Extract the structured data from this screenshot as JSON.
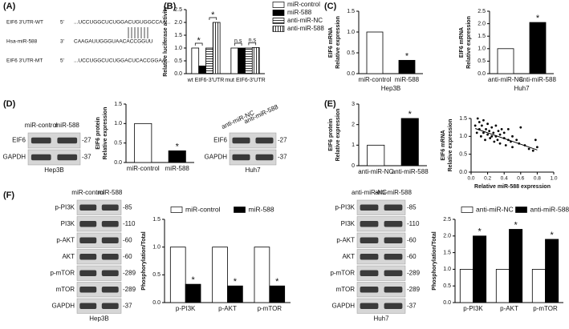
{
  "panel_labels": [
    "(A)",
    "(B)",
    "(C)",
    "(D)",
    "(E)",
    "(F)"
  ],
  "sequences": [
    {
      "name": "EIF6 3'UTR-WT",
      "end": "5'",
      "seq": "...UCCUGGCUCUGGACUGUGGCCAA..."
    },
    {
      "name": "Hsa-miR-588",
      "end": "3'",
      "seq": "CAAGAUUGGGUAACACCGGUU"
    },
    {
      "name": "EIF6 3'UTR-MT",
      "end": "5'",
      "seq": "...UCCUGGCUCUGGACUCACCGGAA..."
    }
  ],
  "blots": [
    {
      "lanes": [
        "miR-control",
        "miR-588"
      ],
      "rows": [
        {
          "name": "EIF6",
          "kda": "-27"
        },
        {
          "name": "GAPDH",
          "kda": "-37"
        }
      ],
      "cell": "Hep3B"
    },
    {
      "lanes": [
        "anti-miR-NC",
        "anti-miR-588"
      ],
      "rows": [
        {
          "name": "EIF6",
          "kda": "-27"
        },
        {
          "name": "GAPDH",
          "kda": "-37"
        }
      ],
      "cell": "Huh7"
    },
    {
      "lanes": [
        "miR-control",
        "miR-588"
      ],
      "rows": [
        {
          "name": "p-PI3K",
          "kda": "-85"
        },
        {
          "name": "PI3K",
          "kda": "-110"
        },
        {
          "name": "p-AKT",
          "kda": "-60"
        },
        {
          "name": "AKT",
          "kda": "-60"
        },
        {
          "name": "p-mTOR",
          "kda": "-289"
        },
        {
          "name": "mTOR",
          "kda": "-289"
        },
        {
          "name": "GAPDH",
          "kda": "-37"
        }
      ],
      "cell": "Hep3B"
    },
    {
      "lanes": [
        "anti-miR-NC",
        "anti-miR-588"
      ],
      "rows": [
        {
          "name": "p-PI3K",
          "kda": "-85"
        },
        {
          "name": "PI3K",
          "kda": "-110"
        },
        {
          "name": "p-AKT",
          "kda": "-60"
        },
        {
          "name": "AKT",
          "kda": "-60"
        },
        {
          "name": "p-mTOR",
          "kda": "-289"
        },
        {
          "name": "mTOR",
          "kda": "-289"
        },
        {
          "name": "GAPDH",
          "kda": "-37"
        }
      ],
      "cell": "Huh7"
    }
  ],
  "chart_data": [
    {
      "type": "bar",
      "ylabel": [
        "Relative luciferase activity"
      ],
      "categories": [
        "wt EIF6-3'UTR",
        "mut EIF6-3'UTR"
      ],
      "series": [
        {
          "name": "miR-control",
          "color": "#ffffff",
          "values": [
            1.0,
            1.0
          ]
        },
        {
          "name": "miR-588",
          "color": "#000000",
          "values": [
            0.3,
            1.0
          ]
        },
        {
          "name": "anti-miR-NC",
          "color": "#ffffff",
          "pattern": "horizontal",
          "values": [
            1.0,
            1.0
          ]
        },
        {
          "name": "anti-miR-588",
          "color": "#ffffff",
          "pattern": "vertical",
          "values": [
            2.0,
            1.02
          ]
        }
      ],
      "legend": "right",
      "annotations": [
        "*",
        "*",
        "n.s",
        "n.s"
      ],
      "ylim": [
        0,
        2.5
      ],
      "yticks": [
        {
          "value": 0,
          "label": "0.0"
        },
        0.5,
        {
          "value": 1,
          "label": "1.0"
        },
        1.5,
        {
          "value": 2,
          "label": "2.0"
        },
        2.5
      ]
    },
    {
      "type": "bar",
      "ylabel": [
        "EIF6 mRNA",
        "Relative expression"
      ],
      "xlabel": "Hep3B",
      "categories": [
        "miR-control",
        "miR-588"
      ],
      "values": [
        1.0,
        0.32
      ],
      "colors": [
        "#ffffff",
        "#000000"
      ],
      "annotations": [
        "*"
      ],
      "ylim": [
        0,
        1.5
      ],
      "yticks": [
        {
          "value": 0,
          "label": "0.0"
        },
        0.5,
        {
          "value": 1,
          "label": "1.0"
        },
        1.5
      ]
    },
    {
      "type": "bar",
      "ylabel": [
        "EIF6 mRNA",
        "Relative expression"
      ],
      "xlabel": "Huh7",
      "categories": [
        "anti-miR-NC",
        "anti-miR-588"
      ],
      "values": [
        1.0,
        2.05
      ],
      "colors": [
        "#ffffff",
        "#000000"
      ],
      "annotations": [
        "*"
      ],
      "ylim": [
        0,
        2.5
      ],
      "yticks": [
        {
          "value": 0,
          "label": "0.0"
        },
        0.5,
        {
          "value": 1,
          "label": "1.0"
        },
        1.5,
        {
          "value": 2,
          "label": "2.0"
        },
        2.5
      ]
    },
    {
      "type": "bar",
      "ylabel": [
        "EIF6 protein",
        "Relative expression"
      ],
      "categories": [
        "miR-control",
        "miR-588"
      ],
      "values": [
        1.0,
        0.3
      ],
      "colors": [
        "#ffffff",
        "#000000"
      ],
      "annotations": [
        "*"
      ],
      "ylim": [
        0,
        1.5
      ],
      "yticks": [
        {
          "value": 0,
          "label": "0.0"
        },
        0.5,
        {
          "value": 1,
          "label": "1.0"
        },
        1.5
      ]
    },
    {
      "type": "bar",
      "ylabel": [
        "EIF6 protein",
        "Relative expression"
      ],
      "categories": [
        "anti-miR-NC",
        "anti-miR-588"
      ],
      "values": [
        1.0,
        2.3
      ],
      "colors": [
        "#ffffff",
        "#000000"
      ],
      "annotations": [
        "*"
      ],
      "ylim": [
        0,
        3
      ],
      "yticks": [
        0,
        1,
        2,
        3
      ]
    },
    {
      "type": "scatter",
      "ylabel": [
        "EIF6 mRNA",
        "Relative expression"
      ],
      "xlabel": "Relative miR-588 expression",
      "x": [
        0.05,
        0.07,
        0.08,
        0.1,
        0.1,
        0.12,
        0.13,
        0.15,
        0.15,
        0.17,
        0.18,
        0.2,
        0.2,
        0.22,
        0.23,
        0.25,
        0.25,
        0.27,
        0.28,
        0.3,
        0.3,
        0.32,
        0.33,
        0.35,
        0.35,
        0.37,
        0.4,
        0.4,
        0.42,
        0.45,
        0.45,
        0.48,
        0.5,
        0.5,
        0.55,
        0.58,
        0.6,
        0.65,
        0.7,
        0.75,
        0.78,
        0.8
      ],
      "values": [
        1.3,
        1.1,
        1.5,
        1.2,
        1.4,
        1.0,
        1.3,
        1.1,
        1.45,
        0.9,
        1.2,
        1.05,
        1.35,
        1.15,
        0.95,
        1.0,
        1.25,
        1.1,
        0.85,
        1.0,
        1.3,
        0.9,
        1.15,
        1.05,
        0.8,
        1.2,
        0.95,
        1.1,
        0.75,
        0.9,
        1.2,
        0.85,
        1.0,
        0.7,
        0.9,
        0.8,
        1.25,
        0.75,
        0.65,
        0.6,
        0.9,
        0.7
      ],
      "trendline": {
        "x": [
          0.05,
          0.8
        ],
        "y": [
          1.22,
          0.62
        ]
      },
      "color": "#000000",
      "xlim": [
        0,
        1
      ],
      "xticks": [
        {
          "value": 0,
          "label": "0.0"
        },
        0.2,
        0.4,
        0.6,
        0.8,
        {
          "value": 1,
          "label": "1.0"
        }
      ],
      "ylim": [
        0,
        1.5
      ],
      "yticks": [
        {
          "value": 0,
          "label": "0.0"
        },
        0.5,
        {
          "value": 1,
          "label": "1.0"
        },
        1.5
      ]
    },
    {
      "type": "bar",
      "ylabel": [
        "Phosphorylation/Total"
      ],
      "categories": [
        "p-PI3K",
        "p-AKT",
        "p-mTOR"
      ],
      "series": [
        {
          "name": "miR-control",
          "color": "#ffffff",
          "values": [
            1.0,
            1.0,
            1.0
          ]
        },
        {
          "name": "miR-588",
          "color": "#000000",
          "values": [
            0.33,
            0.3,
            0.3
          ]
        }
      ],
      "legend": "top",
      "annotations": [
        "*",
        "*",
        "*"
      ],
      "ylim": [
        0,
        1.5
      ],
      "yticks": [
        {
          "value": 0,
          "label": "0.0"
        },
        0.5,
        {
          "value": 1,
          "label": "1.0"
        },
        1.5
      ]
    },
    {
      "type": "bar",
      "ylabel": [
        "Phosphorylation/Total"
      ],
      "categories": [
        "p-PI3K",
        "p-AKT",
        "p-mTOR"
      ],
      "series": [
        {
          "name": "anti-miR-NC",
          "color": "#ffffff",
          "values": [
            1.0,
            1.0,
            1.0
          ]
        },
        {
          "name": "anti-miR-588",
          "color": "#000000",
          "values": [
            2.0,
            2.2,
            1.9
          ]
        }
      ],
      "legend": "top",
      "annotations": [
        "*",
        "*",
        "*"
      ],
      "ylim": [
        0,
        2.5
      ],
      "yticks": [
        {
          "value": 0,
          "label": "0.0"
        },
        0.5,
        {
          "value": 1,
          "label": "1.0"
        },
        1.5,
        {
          "value": 2,
          "label": "2.0"
        },
        2.5
      ]
    }
  ]
}
